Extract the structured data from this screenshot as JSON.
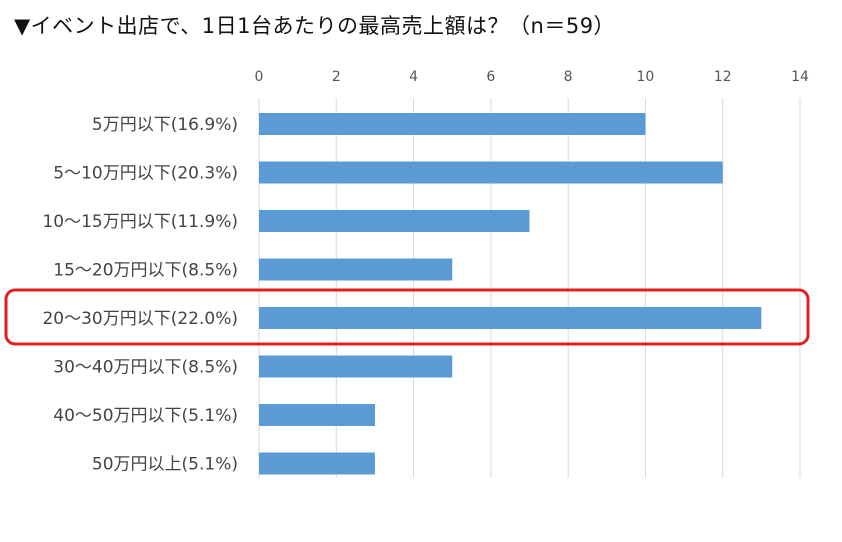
{
  "chart_data": {
    "type": "bar",
    "orientation": "horizontal",
    "title": "▼イベント出店で、1日1台あたりの最高売上額は？（n＝59）",
    "categories": [
      "5万円以下(16.9%)",
      "5～10万円以下(20.3%)",
      "10～15万円以下(11.9%)",
      "15～20万円以下(8.5%)",
      "20～30万円以下(22.0%)",
      "30～40万円以下(8.5%)",
      "40～50万円以下(5.1%)",
      "50万円以上(5.1%)"
    ],
    "values": [
      10,
      12,
      7,
      5,
      13,
      5,
      3,
      3
    ],
    "xlim": [
      0,
      14
    ],
    "xticks": [
      0,
      2,
      4,
      6,
      8,
      10,
      12,
      14
    ],
    "axis_position": "top",
    "grid": true,
    "highlighted_category": "20～30万円以下(22.0%)",
    "colors": {
      "bar": "#5b9bd5",
      "grid": "#d9d9d9",
      "highlight": "#e02020"
    }
  }
}
